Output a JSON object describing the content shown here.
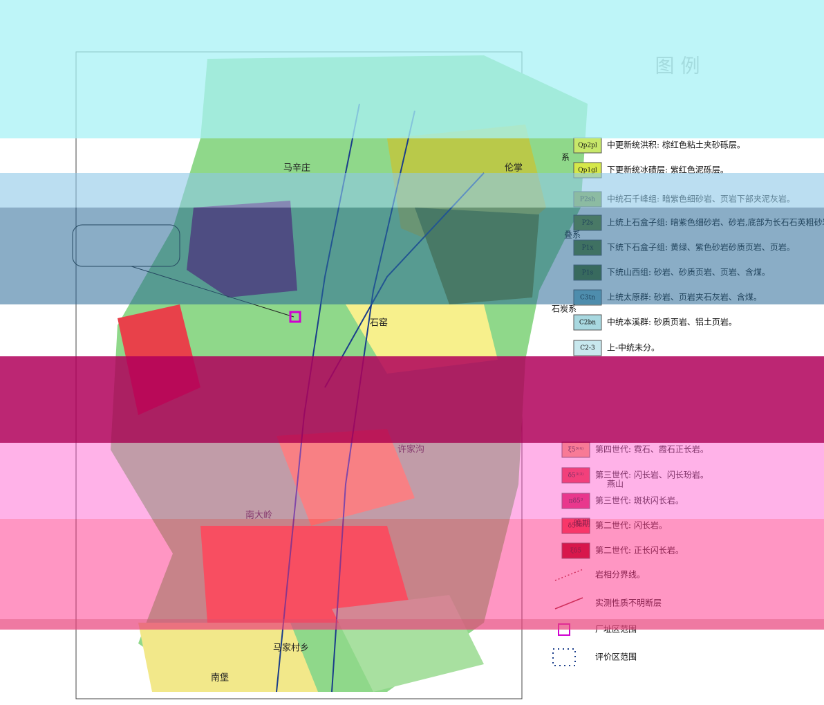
{
  "legend": {
    "title": "图 例",
    "items": [
      {
        "code": "Qp2pl",
        "text": "中更新统洪积: 棕红色粘土夹砂砾层。",
        "color": "#c8e86a"
      },
      {
        "code": "Qp1gl",
        "text": "下更新统冰碛层: 紫红色泥砾层。",
        "color": "#d6e84a"
      },
      {
        "code": "P2sh",
        "text": "中统石千峰组: 暗紫色细砂岩、页岩下部夹泥灰岩。",
        "color": "#8aa83a"
      },
      {
        "code": "P2s",
        "text": "上统上石盒子组: 暗紫色细砂岩、砂岩,底部为长石石英粗砂岩。",
        "color": "#6f8c2c"
      },
      {
        "code": "P1x",
        "text": "下统下石盒子组: 黄绿、紫色砂岩砂质页岩、页岩。",
        "color": "#5a7a22"
      },
      {
        "code": "P1s",
        "text": "下统山西组: 砂岩、砂质页岩、页岩、含煤。",
        "color": "#4a6a1a"
      },
      {
        "code": "C3tn",
        "text": "上统太原群: 砂岩、页岩夹石灰岩、含煤。",
        "color": "#7ab8c8"
      },
      {
        "code": "C2bn",
        "text": "中统本溪群: 砂质页岩、铝土页岩。",
        "color": "#a8d8e0"
      },
      {
        "code": "C2-3",
        "text": "上-中统未分。",
        "color": "#c8e8ee"
      },
      {
        "code": "ξ5³⁽⁴⁾",
        "text": "第四世代: 霓石、霞石正长岩。",
        "color": "#f39a6a"
      },
      {
        "code": "δ5³⁽³⁾",
        "text": "第三世代: 闪长岩、闪长玢岩。",
        "color": "#e8303a"
      },
      {
        "code": "πδ5³",
        "text": "第三世代: 斑状闪长岩。",
        "color": "#d8205a"
      },
      {
        "code": "δ5³⁽²⁾",
        "text": "第二世代: 闪长岩。",
        "color": "#f0404a"
      },
      {
        "code": "ξδ5",
        "text": "第二世代: 正长闪长岩。",
        "color": "#b00010"
      },
      {
        "code": "",
        "text": "岩相分界线。",
        "color": "none"
      },
      {
        "code": "",
        "text": "实测性质不明断层",
        "color": "none"
      },
      {
        "code": "",
        "text": "厂址区范围",
        "color": "none"
      },
      {
        "code": "",
        "text": "评价区范围",
        "color": "none"
      }
    ],
    "groups": [
      "系",
      "叠系",
      "石炭系",
      "燕山",
      "晚期"
    ]
  },
  "places": [
    "马辛庄",
    "伦掌",
    "许家沟",
    "南大岭",
    "马家村乡",
    "南堡",
    "石窑"
  ]
}
